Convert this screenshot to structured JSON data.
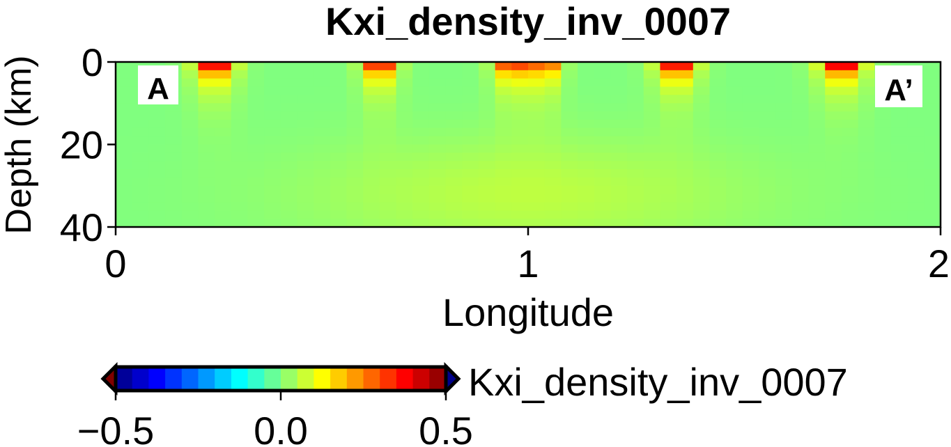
{
  "chart_data": [
    {
      "type": "heatmap",
      "title": "Kxi_density_inv_0007",
      "xlabel": "Longitude",
      "ylabel": "Depth (km)",
      "xlim": [
        0,
        2
      ],
      "ylim": [
        40,
        0
      ],
      "xticks": [
        0,
        1,
        2
      ],
      "xtick_labels": [
        "0",
        "1",
        "2"
      ],
      "yticks": [
        0,
        20,
        40
      ],
      "ytick_labels": [
        "0",
        "20",
        "40"
      ],
      "background_value": 0.0,
      "annotations": [
        {
          "text": "A",
          "position": "top-left"
        },
        {
          "text": "A’",
          "position": "top-right"
        }
      ],
      "anomalies": [
        {
          "x_center": 0.24,
          "intensity": 0.52,
          "width_scale": 1.2
        },
        {
          "x_center": 0.64,
          "intensity": 0.5,
          "width_scale": 1.0
        },
        {
          "x_center": 0.96,
          "intensity": 0.42,
          "width_scale": 1.0
        },
        {
          "x_center": 1.04,
          "intensity": 0.36,
          "width_scale": 0.9
        },
        {
          "x_center": 1.36,
          "intensity": 0.5,
          "width_scale": 1.2
        },
        {
          "x_center": 1.76,
          "intensity": 0.52,
          "width_scale": 1.3
        }
      ]
    },
    {
      "type": "colorbar",
      "label": "Kxi_density_inv_0007",
      "vmin": -0.5,
      "vmax": 0.5,
      "ticks": [
        -0.5,
        0.0,
        0.5
      ],
      "tick_labels": [
        "−0.5",
        "0.0",
        "0.5"
      ],
      "colormap": "jet",
      "extend": "both"
    }
  ]
}
